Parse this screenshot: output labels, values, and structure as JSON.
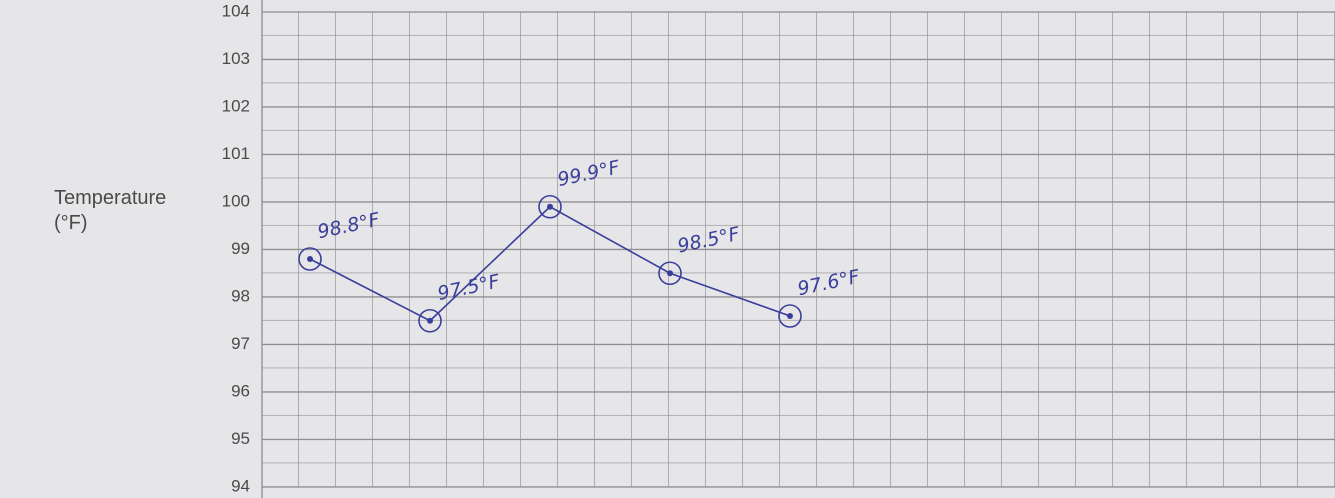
{
  "chart_data": {
    "type": "line",
    "ylabel": "Temperature (°F)",
    "categories": [
      null,
      null,
      null,
      null,
      null
    ],
    "series": [
      {
        "color": "#3b3f9c",
        "values": [
          98.8,
          97.5,
          99.9,
          98.5,
          97.6
        ],
        "value_labels": [
          "98.8°F",
          "97.5°F",
          "99.9°F",
          "98.5°F",
          "97.6°F"
        ]
      }
    ],
    "ylim": [
      94,
      104
    ],
    "yticks": [
      94,
      95,
      96,
      97,
      98,
      99,
      100,
      101,
      102,
      103,
      104
    ],
    "grid": true
  }
}
